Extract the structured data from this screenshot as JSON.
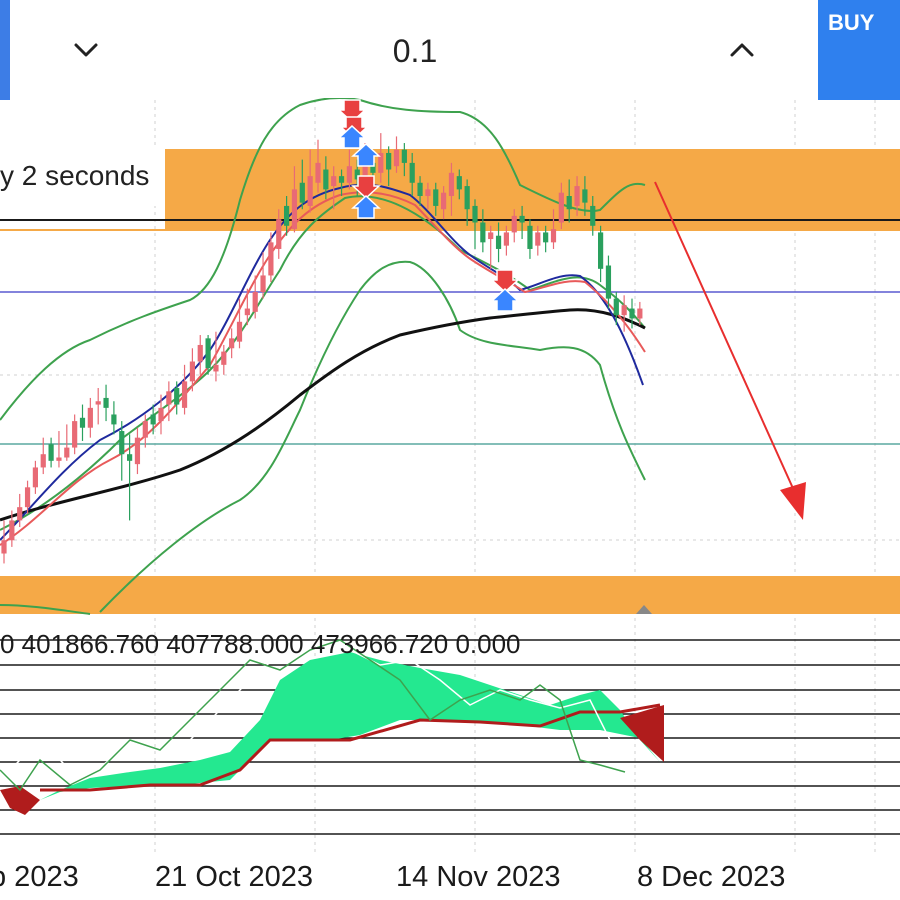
{
  "toolbar": {
    "lot_value": "0.1",
    "buy_label": "BUY",
    "decrease_icon": "chevron-down-icon",
    "increase_icon": "chevron-up-icon"
  },
  "notification": {
    "text": "y 2 seconds"
  },
  "indicator": {
    "values_text": "0 401866.760 407788.000 473966.720 0.000"
  },
  "x_axis": {
    "labels": [
      "p 2023",
      "21 Oct 2023",
      "14 Nov 2023",
      "8 Dec 2023"
    ]
  },
  "colors": {
    "zone": "#f5a947",
    "bollinger": "#3ea24e",
    "sma_long": "#111111",
    "ema_fast": "#1f2a9e",
    "ema_slow": "#e85a5a",
    "bull_candle": "#2aa05e",
    "bear_candle": "#e86a75",
    "cloud_bull": "#24e890",
    "cloud_bear": "#b01c1c",
    "forecast_arrow": "#e82e2e",
    "buy_button": "#2f80ee"
  },
  "chart_data": {
    "type": "candlestick",
    "x_labels": [
      "p 2023",
      "21 Oct 2023",
      "14 Nov 2023",
      "8 Dec 2023"
    ],
    "candles": [
      [
        0.62,
        0.58,
        0.68,
        0.55
      ],
      [
        0.68,
        0.62,
        0.71,
        0.6
      ],
      [
        0.72,
        0.68,
        0.76,
        0.66
      ],
      [
        0.78,
        0.72,
        0.8,
        0.7
      ],
      [
        0.84,
        0.78,
        0.86,
        0.76
      ],
      [
        0.88,
        0.84,
        0.93,
        0.82
      ],
      [
        0.86,
        0.91,
        0.93,
        0.84
      ],
      [
        0.87,
        0.86,
        0.95,
        0.84
      ],
      [
        0.9,
        0.87,
        0.97,
        0.86
      ],
      [
        0.98,
        0.9,
        1.0,
        0.88
      ],
      [
        0.96,
        0.99,
        1.03,
        0.92
      ],
      [
        1.02,
        0.96,
        1.05,
        0.93
      ],
      [
        1.04,
        1.03,
        1.08,
        0.97
      ],
      [
        1.02,
        1.05,
        1.09,
        0.98
      ],
      [
        0.97,
        1.0,
        1.04,
        0.94
      ],
      [
        0.88,
        0.95,
        0.98,
        0.8
      ],
      [
        0.86,
        0.88,
        0.94,
        0.68
      ],
      [
        0.93,
        0.85,
        0.96,
        0.82
      ],
      [
        0.98,
        0.93,
        1.0,
        0.9
      ],
      [
        0.97,
        1.0,
        1.03,
        0.94
      ],
      [
        1.02,
        0.98,
        1.06,
        0.94
      ],
      [
        1.07,
        1.03,
        1.1,
        0.98
      ],
      [
        1.03,
        1.08,
        1.1,
        1.0
      ],
      [
        1.1,
        1.02,
        1.15,
        1.0
      ],
      [
        1.16,
        1.1,
        1.2,
        1.07
      ],
      [
        1.21,
        1.16,
        1.24,
        1.12
      ],
      [
        1.14,
        1.23,
        1.24,
        1.12
      ],
      [
        1.15,
        1.13,
        1.25,
        1.1
      ],
      [
        1.19,
        1.15,
        1.21,
        1.12
      ],
      [
        1.23,
        1.2,
        1.26,
        1.17
      ],
      [
        1.28,
        1.22,
        1.35,
        1.2
      ],
      [
        1.32,
        1.3,
        1.38,
        1.27
      ],
      [
        1.37,
        1.31,
        1.42,
        1.29
      ],
      [
        1.42,
        1.37,
        1.49,
        1.35
      ],
      [
        1.52,
        1.42,
        1.55,
        1.4
      ],
      [
        1.59,
        1.5,
        1.62,
        1.47
      ],
      [
        1.57,
        1.63,
        1.66,
        1.54
      ],
      [
        1.68,
        1.56,
        1.75,
        1.55
      ],
      [
        1.64,
        1.7,
        1.77,
        1.62
      ],
      [
        1.72,
        1.63,
        1.8,
        1.61
      ],
      [
        1.76,
        1.7,
        1.83,
        1.67
      ],
      [
        1.68,
        1.74,
        1.78,
        1.65
      ],
      [
        1.72,
        1.69,
        1.75,
        1.62
      ],
      [
        1.7,
        1.72,
        1.74,
        1.66
      ],
      [
        1.75,
        1.7,
        1.8,
        1.68
      ],
      [
        1.71,
        1.74,
        1.77,
        1.66
      ],
      [
        1.77,
        1.71,
        1.82,
        1.69
      ],
      [
        1.73,
        1.76,
        1.8,
        1.68
      ],
      [
        1.79,
        1.73,
        1.85,
        1.7
      ],
      [
        1.74,
        1.79,
        1.81,
        1.69
      ],
      [
        1.8,
        1.75,
        1.84,
        1.73
      ],
      [
        1.76,
        1.8,
        1.82,
        1.72
      ],
      [
        1.7,
        1.76,
        1.79,
        1.66
      ],
      [
        1.66,
        1.7,
        1.72,
        1.63
      ],
      [
        1.68,
        1.66,
        1.7,
        1.62
      ],
      [
        1.63,
        1.68,
        1.7,
        1.6
      ],
      [
        1.67,
        1.62,
        1.69,
        1.59
      ],
      [
        1.73,
        1.66,
        1.76,
        1.6
      ],
      [
        1.68,
        1.72,
        1.74,
        1.65
      ],
      [
        1.62,
        1.69,
        1.71,
        1.57
      ],
      [
        1.58,
        1.63,
        1.65,
        1.5
      ],
      [
        1.52,
        1.58,
        1.62,
        1.49
      ],
      [
        1.55,
        1.53,
        1.57,
        1.44
      ],
      [
        1.5,
        1.54,
        1.58,
        1.46
      ],
      [
        1.55,
        1.51,
        1.57,
        1.48
      ],
      [
        1.6,
        1.55,
        1.62,
        1.52
      ],
      [
        1.58,
        1.6,
        1.63,
        1.53
      ],
      [
        1.5,
        1.57,
        1.59,
        1.47
      ],
      [
        1.55,
        1.51,
        1.57,
        1.48
      ],
      [
        1.52,
        1.55,
        1.57,
        1.49
      ],
      [
        1.56,
        1.52,
        1.62,
        1.5
      ],
      [
        1.67,
        1.58,
        1.7,
        1.56
      ],
      [
        1.62,
        1.66,
        1.71,
        1.58
      ],
      [
        1.69,
        1.63,
        1.72,
        1.6
      ],
      [
        1.64,
        1.68,
        1.72,
        1.6
      ],
      [
        1.57,
        1.63,
        1.66,
        1.54
      ],
      [
        1.44,
        1.55,
        1.57,
        1.4
      ],
      [
        1.35,
        1.45,
        1.48,
        1.32
      ],
      [
        1.3,
        1.35,
        1.37,
        1.27
      ],
      [
        1.33,
        1.3,
        1.36,
        1.25
      ],
      [
        1.29,
        1.32,
        1.35,
        1.26
      ],
      [
        1.32,
        1.29,
        1.34,
        1.27
      ]
    ],
    "price_min": 0.5,
    "price_max": 1.95
  }
}
